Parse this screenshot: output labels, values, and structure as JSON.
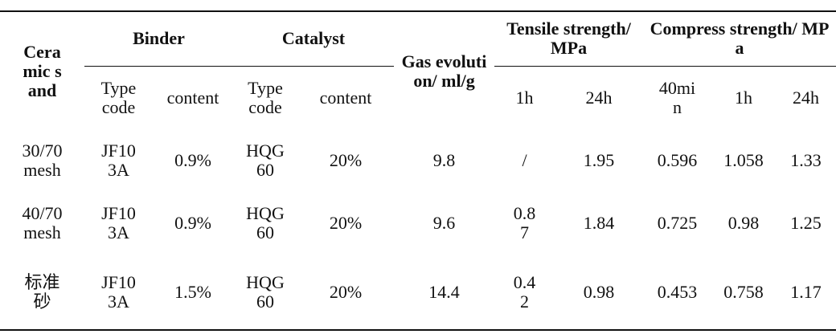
{
  "table": {
    "header": {
      "ceramic_sand": "Ceramic sand",
      "binder": "Binder",
      "catalyst": "Catalyst",
      "gas_evolution": "Gas evolution/ ml/g",
      "tensile": "Tensile strength/MPa",
      "compress": "Compress strength/ MPa",
      "sub": [
        "Type code",
        "content",
        "Type code",
        "content",
        "1h",
        "24h",
        "40min",
        "1h",
        "24h"
      ]
    },
    "rows": [
      [
        "30/70 mesh",
        "JF103A",
        "0.9%",
        "HQG60",
        "20%",
        "9.8",
        "/",
        "1.95",
        "0.596",
        "1.058",
        "1.33"
      ],
      [
        "40/70 mesh",
        "JF103A",
        "0.9%",
        "HQG60",
        "20%",
        "9.6",
        "0.87",
        "1.84",
        "0.725",
        "0.98",
        "1.25"
      ],
      [
        "标准砂",
        "JF103A",
        "1.5%",
        "HQG60",
        "20%",
        "14.4",
        "0.42",
        "0.98",
        "0.453",
        "0.758",
        "1.17"
      ]
    ]
  }
}
